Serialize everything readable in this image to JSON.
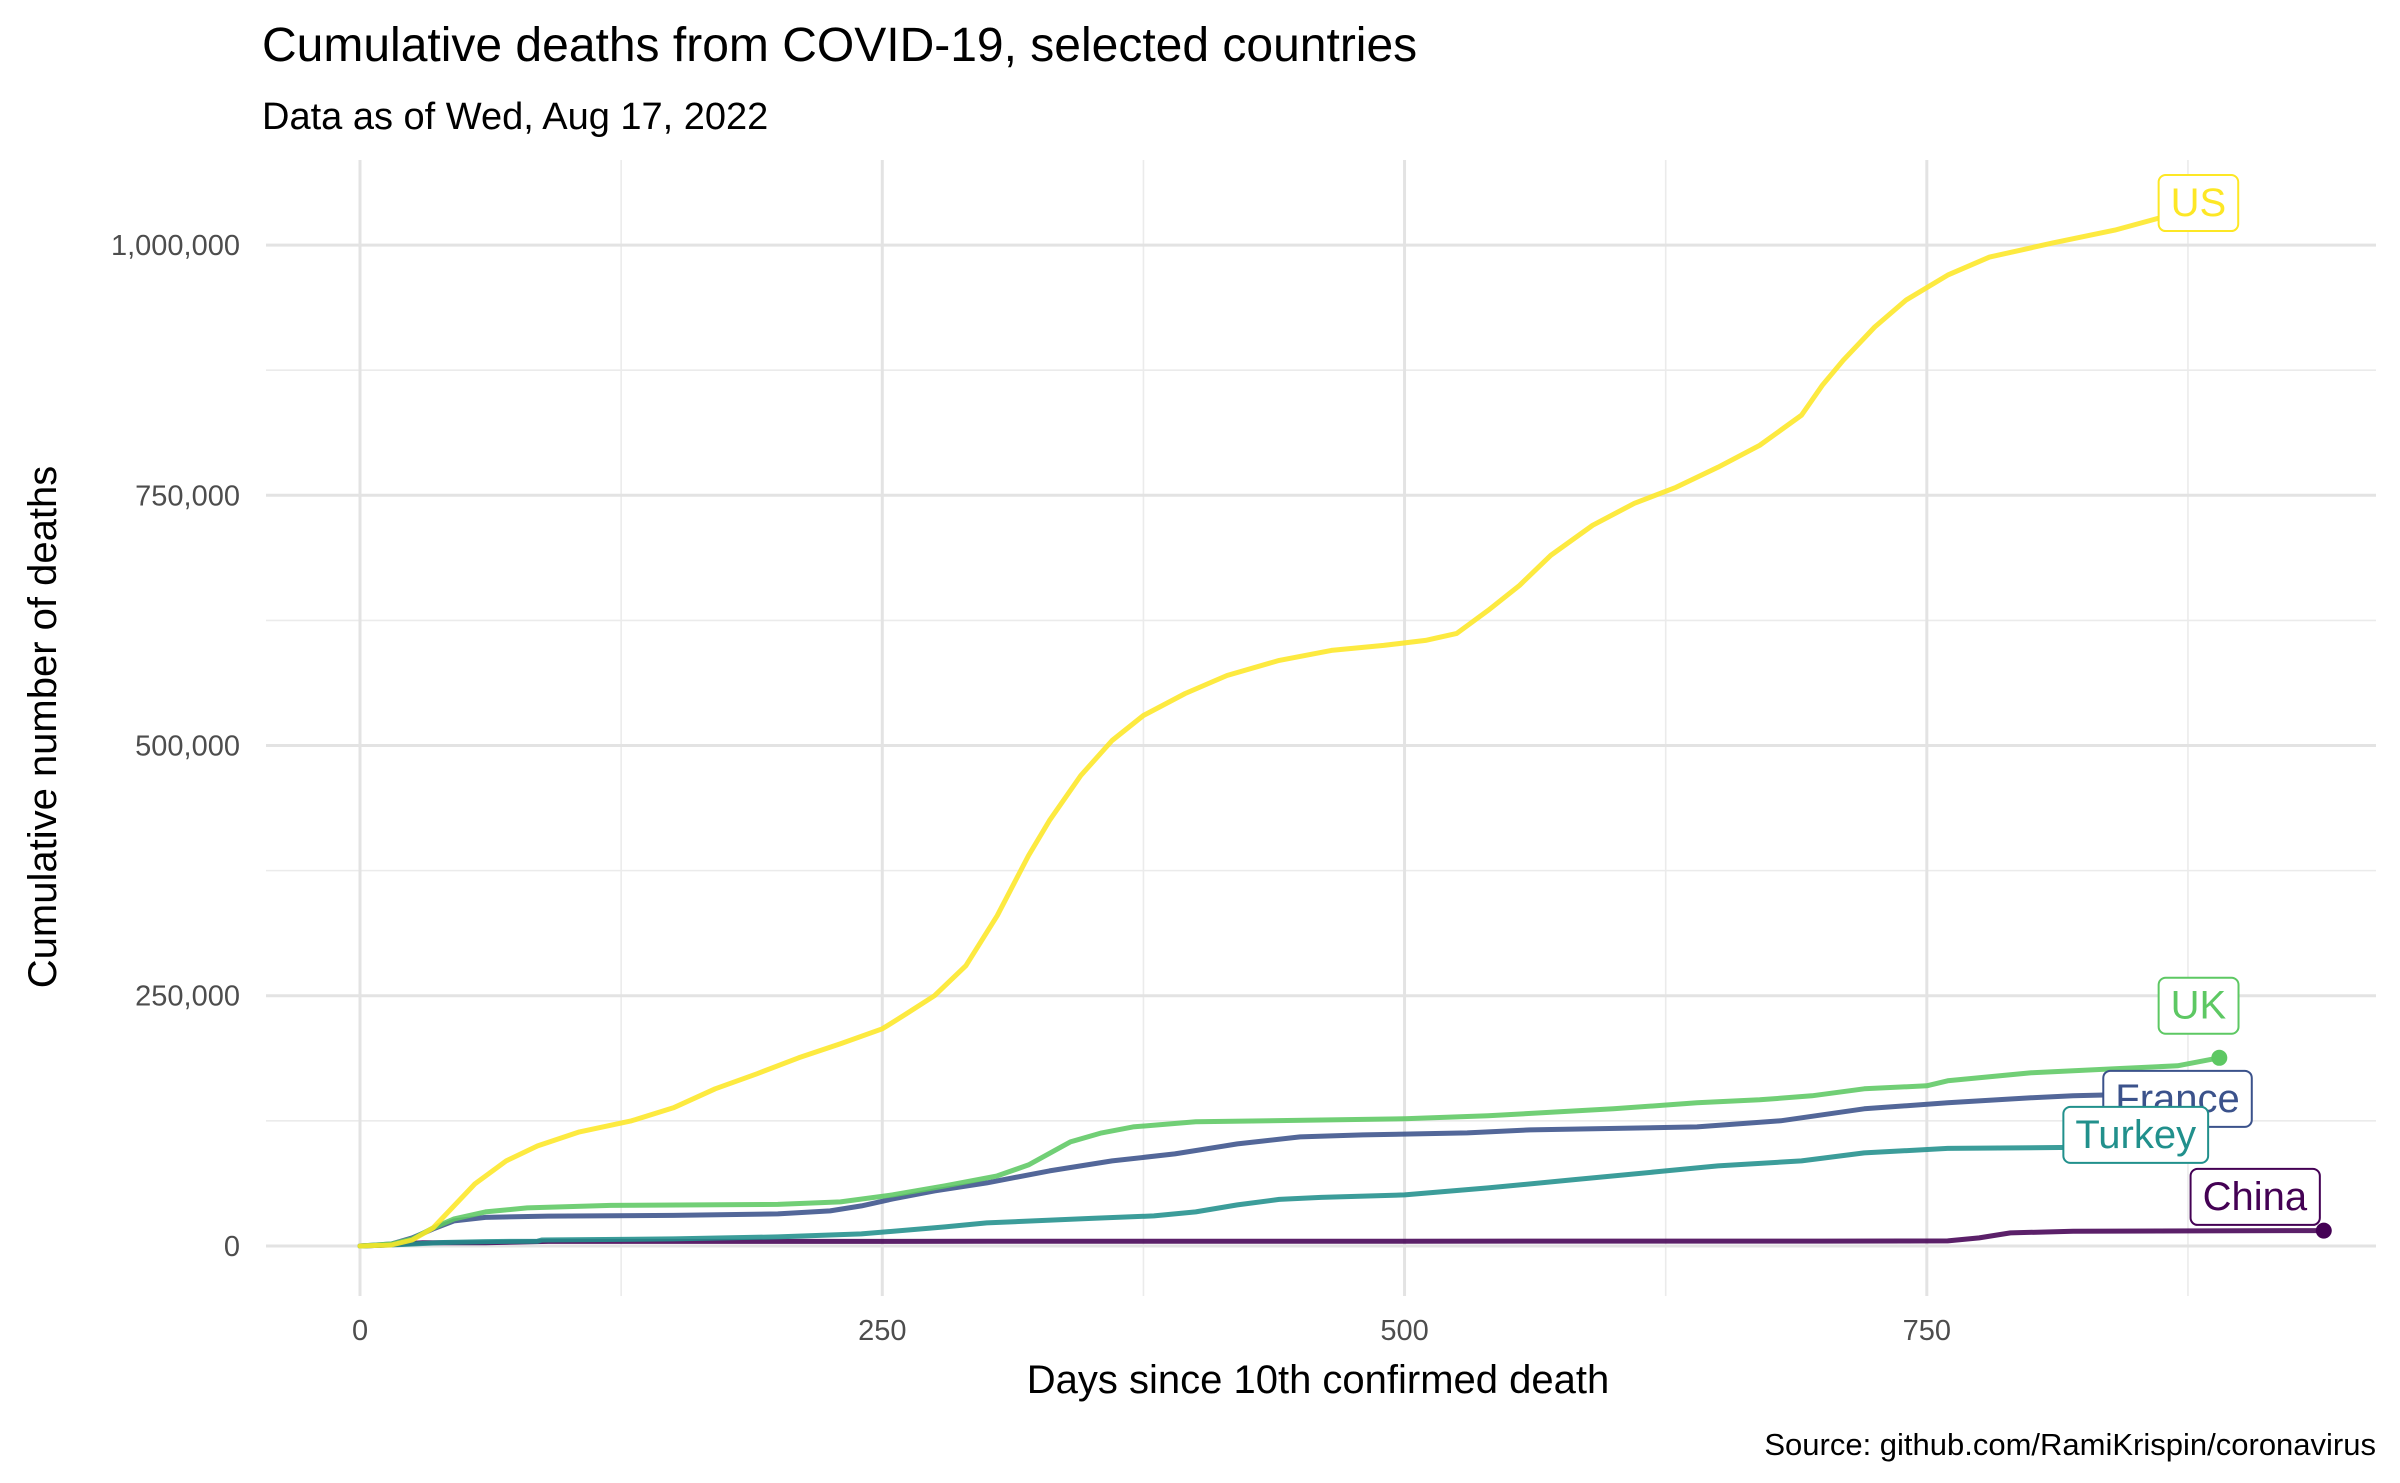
{
  "chart_data": {
    "type": "line",
    "title": "Cumulative deaths from COVID-19, selected countries",
    "subtitle": "Data as of Wed, Aug 17, 2022",
    "xlabel": "Days since 10th confirmed death",
    "ylabel": "Cumulative number of deaths",
    "caption": "Source: github.com/RamiKrispin/coronavirus",
    "xlim": [
      -45,
      965
    ],
    "ylim": [
      -50000,
      1085000
    ],
    "x_ticks": [
      0,
      250,
      500,
      750
    ],
    "x_tick_labels": [
      "0",
      "250",
      "500",
      "750"
    ],
    "y_ticks": [
      0,
      250000,
      500000,
      750000,
      1000000
    ],
    "y_tick_labels": [
      "0",
      "250,000",
      "500,000",
      "750,000",
      "1,000,000"
    ],
    "grid": true,
    "legend": "none (direct labels at series ends)",
    "series": [
      {
        "name": "China",
        "color": "#440154",
        "points": [
          [
            0,
            0
          ],
          [
            10,
            700
          ],
          [
            20,
            2000
          ],
          [
            30,
            3200
          ],
          [
            60,
            3300
          ],
          [
            90,
            4600
          ],
          [
            300,
            4700
          ],
          [
            700,
            4900
          ],
          [
            760,
            5100
          ],
          [
            775,
            8000
          ],
          [
            790,
            13000
          ],
          [
            820,
            14700
          ],
          [
            900,
            15200
          ],
          [
            940,
            15300
          ]
        ]
      },
      {
        "name": "France",
        "color": "#3B528B",
        "points": [
          [
            0,
            0
          ],
          [
            15,
            2000
          ],
          [
            25,
            8000
          ],
          [
            35,
            17000
          ],
          [
            45,
            25000
          ],
          [
            60,
            28500
          ],
          [
            90,
            29800
          ],
          [
            150,
            30500
          ],
          [
            200,
            32000
          ],
          [
            225,
            35000
          ],
          [
            240,
            40000
          ],
          [
            255,
            47000
          ],
          [
            275,
            55000
          ],
          [
            300,
            63000
          ],
          [
            330,
            75000
          ],
          [
            360,
            85000
          ],
          [
            390,
            92000
          ],
          [
            420,
            102000
          ],
          [
            450,
            109000
          ],
          [
            480,
            111000
          ],
          [
            530,
            113000
          ],
          [
            560,
            116000
          ],
          [
            640,
            119000
          ],
          [
            680,
            125000
          ],
          [
            720,
            137000
          ],
          [
            760,
            143000
          ],
          [
            800,
            148000
          ],
          [
            820,
            150000
          ],
          [
            860,
            152000
          ]
        ]
      },
      {
        "name": "Turkey",
        "color": "#21908C",
        "points": [
          [
            0,
            0
          ],
          [
            20,
            1500
          ],
          [
            40,
            3500
          ],
          [
            60,
            4400
          ],
          [
            85,
            4800
          ],
          [
            87,
            6000
          ],
          [
            150,
            7000
          ],
          [
            200,
            9000
          ],
          [
            240,
            12000
          ],
          [
            280,
            19000
          ],
          [
            300,
            23000
          ],
          [
            350,
            27500
          ],
          [
            380,
            30000
          ],
          [
            400,
            34000
          ],
          [
            420,
            41000
          ],
          [
            440,
            46500
          ],
          [
            460,
            48500
          ],
          [
            500,
            51000
          ],
          [
            540,
            58000
          ],
          [
            580,
            66000
          ],
          [
            620,
            74000
          ],
          [
            650,
            80000
          ],
          [
            690,
            85000
          ],
          [
            720,
            93000
          ],
          [
            760,
            97500
          ],
          [
            820,
            98500
          ],
          [
            840,
            98700
          ]
        ]
      },
      {
        "name": "UK",
        "color": "#5DC863",
        "points": [
          [
            0,
            0
          ],
          [
            15,
            2000
          ],
          [
            25,
            7000
          ],
          [
            35,
            18000
          ],
          [
            45,
            27000
          ],
          [
            60,
            34000
          ],
          [
            80,
            38000
          ],
          [
            120,
            40500
          ],
          [
            200,
            41500
          ],
          [
            230,
            44000
          ],
          [
            255,
            51000
          ],
          [
            280,
            60000
          ],
          [
            305,
            70000
          ],
          [
            320,
            81000
          ],
          [
            340,
            104000
          ],
          [
            355,
            113000
          ],
          [
            370,
            119000
          ],
          [
            400,
            124000
          ],
          [
            500,
            127000
          ],
          [
            540,
            130000
          ],
          [
            600,
            137000
          ],
          [
            640,
            143000
          ],
          [
            670,
            146000
          ],
          [
            695,
            150000
          ],
          [
            720,
            157000
          ],
          [
            750,
            160000
          ],
          [
            760,
            165000
          ],
          [
            800,
            173000
          ],
          [
            840,
            177000
          ],
          [
            870,
            180000
          ],
          [
            890,
            188000
          ]
        ]
      },
      {
        "name": "US",
        "color": "#FDE725",
        "points": [
          [
            0,
            0
          ],
          [
            15,
            1000
          ],
          [
            25,
            6000
          ],
          [
            35,
            18000
          ],
          [
            45,
            40000
          ],
          [
            55,
            62000
          ],
          [
            70,
            85000
          ],
          [
            85,
            100000
          ],
          [
            105,
            114000
          ],
          [
            130,
            125000
          ],
          [
            150,
            138000
          ],
          [
            170,
            157000
          ],
          [
            190,
            172000
          ],
          [
            210,
            188000
          ],
          [
            230,
            202000
          ],
          [
            250,
            217000
          ],
          [
            260,
            230000
          ],
          [
            275,
            250000
          ],
          [
            290,
            280000
          ],
          [
            305,
            330000
          ],
          [
            320,
            390000
          ],
          [
            330,
            425000
          ],
          [
            345,
            470000
          ],
          [
            360,
            505000
          ],
          [
            375,
            530000
          ],
          [
            395,
            552000
          ],
          [
            415,
            570000
          ],
          [
            440,
            585000
          ],
          [
            465,
            595000
          ],
          [
            490,
            600000
          ],
          [
            510,
            605000
          ],
          [
            525,
            612000
          ],
          [
            540,
            635000
          ],
          [
            555,
            660000
          ],
          [
            570,
            690000
          ],
          [
            590,
            720000
          ],
          [
            610,
            742000
          ],
          [
            630,
            758000
          ],
          [
            650,
            778000
          ],
          [
            670,
            800000
          ],
          [
            690,
            830000
          ],
          [
            700,
            860000
          ],
          [
            710,
            885000
          ],
          [
            725,
            918000
          ],
          [
            740,
            945000
          ],
          [
            760,
            970000
          ],
          [
            780,
            988000
          ],
          [
            810,
            1002000
          ],
          [
            840,
            1015000
          ],
          [
            870,
            1032000
          ]
        ]
      }
    ],
    "end_labels": [
      {
        "series": "US",
        "text": "US",
        "x": 880,
        "y": 1042000
      },
      {
        "series": "UK",
        "text": "UK",
        "x": 880,
        "y": 240000
      },
      {
        "series": "France",
        "text": "France",
        "x": 870,
        "y": 147000
      },
      {
        "series": "Turkey",
        "text": "Turkey",
        "x": 850,
        "y": 111000
      },
      {
        "series": "China",
        "text": "China",
        "x": 907,
        "y": 49000
      }
    ]
  }
}
